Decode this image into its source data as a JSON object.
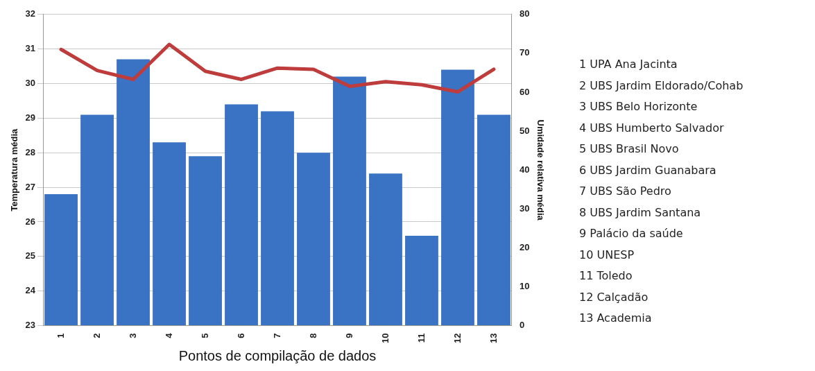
{
  "chart_data": {
    "type": "bar",
    "xlabel": "Pontos de compilação de dados",
    "ylabel": "Temperatura média",
    "y2label": "Umidade relativa média",
    "categories": [
      "1",
      "2",
      "3",
      "4",
      "5",
      "6",
      "7",
      "8",
      "9",
      "10",
      "11",
      "12",
      "13"
    ],
    "series": [
      {
        "color": "#3a72c4",
        "values": [
          26.8,
          29.1,
          30.7,
          28.3,
          27.9,
          29.4,
          29.2,
          28.0,
          30.2,
          27.4,
          25.6,
          30.4,
          29.1
        ]
      },
      {
        "type": "line",
        "axis": "y2",
        "color": "#be3c3c",
        "values": [
          71.0,
          65.6,
          63.3,
          72.3,
          65.4,
          63.3,
          66.2,
          65.9,
          61.5,
          62.7,
          61.9,
          60.1,
          65.9
        ]
      }
    ],
    "ylim": [
      23,
      32
    ],
    "yticks": [
      23,
      24,
      25,
      26,
      27,
      28,
      29,
      30,
      31,
      32
    ],
    "y2lim": [
      0,
      80
    ],
    "y2ticks": [
      0,
      10,
      20,
      30,
      40,
      50,
      60,
      70,
      80
    ],
    "grid": "y",
    "legend": false,
    "marker": "none",
    "annotations": [
      "1 UPA Ana Jacinta",
      "2 UBS Jardim Eldorado/Cohab",
      "3 UBS Belo Horizonte",
      "4 UBS Humberto Salvador",
      "5 UBS Brasil Novo",
      "6 UBS Jardim Guanabara",
      "7 UBS São Pedro",
      "8 UBS Jardim Santana",
      "9 Palácio da saúde",
      "10 UNESP",
      "11 Toledo",
      "12 Calçadão",
      "13 Academia"
    ]
  }
}
